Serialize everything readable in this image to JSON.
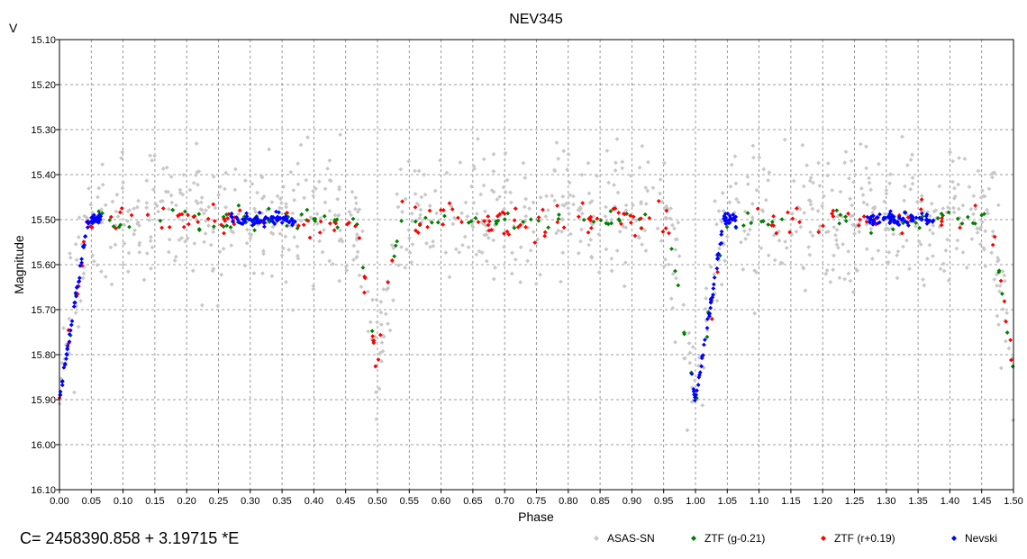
{
  "chart_data": {
    "type": "scatter",
    "title": "NEV345",
    "band_label": "V",
    "xlabel": "Phase",
    "ylabel": "Magnitude",
    "xlim": [
      0.0,
      1.5
    ],
    "ylim": [
      15.1,
      16.1
    ],
    "y_inverted": true,
    "grid": true,
    "legend_position": "bottom-right",
    "x_ticks": [
      "0.00",
      "0.05",
      "0.10",
      "0.15",
      "0.20",
      "0.25",
      "0.30",
      "0.35",
      "0.40",
      "0.45",
      "0.50",
      "0.55",
      "0.60",
      "0.65",
      "0.70",
      "0.75",
      "0.80",
      "0.85",
      "0.90",
      "0.95",
      "1.00",
      "1.05",
      "1.10",
      "1.15",
      "1.20",
      "1.25",
      "1.30",
      "1.35",
      "1.40",
      "1.45",
      "1.50"
    ],
    "y_ticks": [
      "15.10",
      "15.20",
      "15.30",
      "15.40",
      "15.50",
      "15.60",
      "15.70",
      "15.80",
      "15.90",
      "16.00",
      "16.10"
    ],
    "ephemeris": "C= 2458390.858 + 3.19715 *E",
    "series": [
      {
        "name": "ASAS-SN",
        "color": "#c8c8c8"
      },
      {
        "name": "ZTF (g-0.21)",
        "color": "#008000"
      },
      {
        "name": "ZTF (r+0.19)",
        "color": "#ff0000"
      },
      {
        "name": "Nevski",
        "color": "#0000ff"
      }
    ]
  }
}
